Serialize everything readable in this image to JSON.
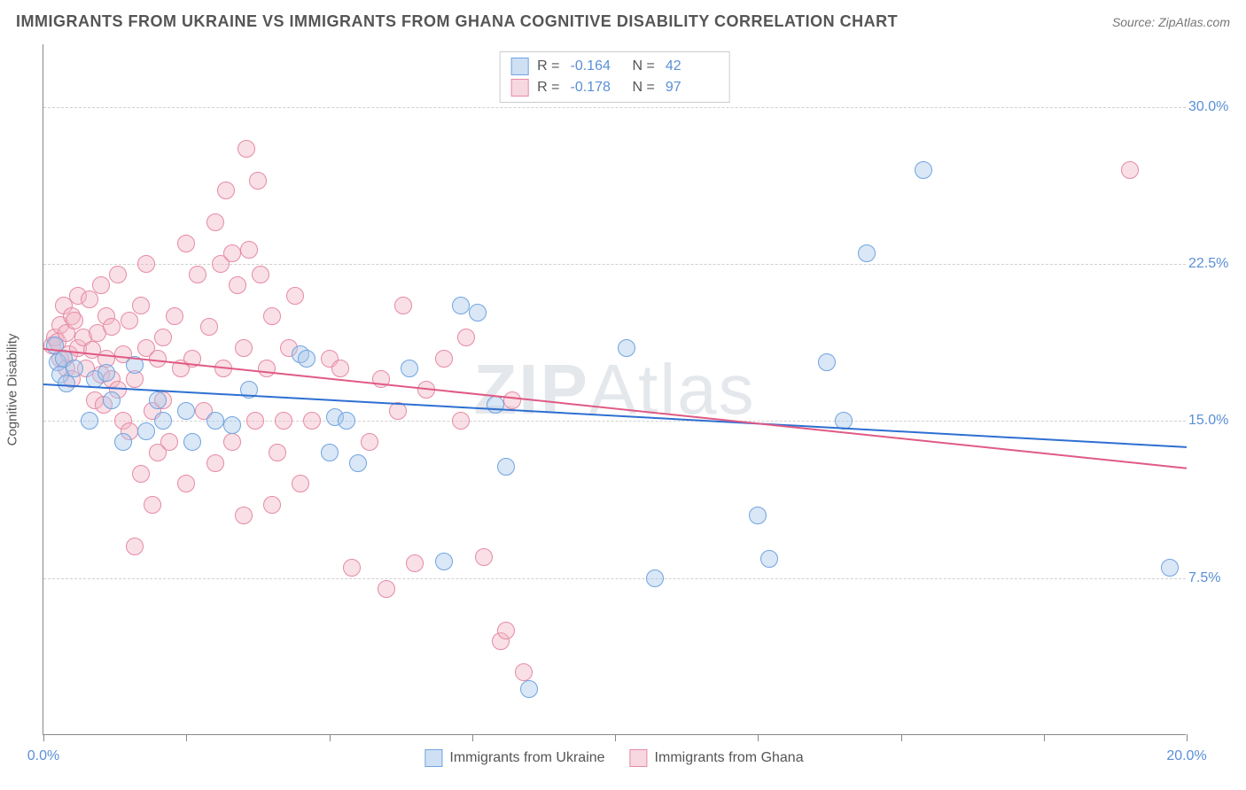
{
  "title": "IMMIGRANTS FROM UKRAINE VS IMMIGRANTS FROM GHANA COGNITIVE DISABILITY CORRELATION CHART",
  "source_prefix": "Source: ",
  "source_name": "ZipAtlas.com",
  "watermark_bold": "ZIP",
  "watermark_light": "Atlas",
  "chart": {
    "type": "scatter",
    "ylabel": "Cognitive Disability",
    "xlim": [
      0,
      20
    ],
    "ylim": [
      0,
      33
    ],
    "xticks": [
      0,
      2.5,
      5,
      7.5,
      10,
      12.5,
      15,
      17.5,
      20
    ],
    "xtick_labels": {
      "0": "0.0%",
      "20": "20.0%"
    },
    "yticks": [
      7.5,
      15.0,
      22.5,
      30.0
    ],
    "ytick_labels": [
      "7.5%",
      "15.0%",
      "22.5%",
      "30.0%"
    ],
    "background_color": "#ffffff",
    "grid_color": "#d0d0d0",
    "axis_color": "#888888",
    "tick_label_color": "#5a8fd6",
    "marker_radius": 10,
    "marker_stroke_width": 1.5,
    "marker_fill_opacity": 0.18,
    "series": [
      {
        "name": "Immigrants from Ukraine",
        "color_stroke": "#6fa4e0",
        "color_fill": "#a9c7ea",
        "swatch_fill": "#cfe0f4",
        "swatch_border": "#6fa4e0",
        "trend_color": "#2e6fd1",
        "R": "-0.164",
        "N": "42",
        "trend": {
          "x1": 0,
          "y1": 16.8,
          "x2": 20,
          "y2": 13.8
        },
        "points": [
          [
            0.2,
            18.6
          ],
          [
            0.25,
            17.8
          ],
          [
            0.3,
            17.2
          ],
          [
            0.35,
            18.0
          ],
          [
            0.4,
            16.8
          ],
          [
            0.55,
            17.5
          ],
          [
            0.8,
            15.0
          ],
          [
            0.9,
            17.0
          ],
          [
            1.1,
            17.3
          ],
          [
            1.2,
            16.0
          ],
          [
            1.4,
            14.0
          ],
          [
            1.6,
            17.7
          ],
          [
            1.8,
            14.5
          ],
          [
            2.0,
            16.0
          ],
          [
            2.1,
            15.0
          ],
          [
            2.5,
            15.5
          ],
          [
            2.6,
            14.0
          ],
          [
            3.0,
            15.0
          ],
          [
            3.3,
            14.8
          ],
          [
            3.6,
            16.5
          ],
          [
            4.5,
            18.2
          ],
          [
            4.6,
            18.0
          ],
          [
            5.0,
            13.5
          ],
          [
            5.1,
            15.2
          ],
          [
            5.3,
            15.0
          ],
          [
            5.5,
            13.0
          ],
          [
            6.4,
            17.5
          ],
          [
            7.0,
            8.3
          ],
          [
            7.3,
            20.5
          ],
          [
            7.6,
            20.2
          ],
          [
            7.9,
            15.8
          ],
          [
            8.1,
            12.8
          ],
          [
            8.5,
            2.2
          ],
          [
            10.2,
            18.5
          ],
          [
            10.7,
            7.5
          ],
          [
            12.5,
            10.5
          ],
          [
            12.7,
            8.4
          ],
          [
            13.7,
            17.8
          ],
          [
            14.0,
            15.0
          ],
          [
            14.4,
            23.0
          ],
          [
            15.4,
            27.0
          ],
          [
            19.7,
            8.0
          ]
        ]
      },
      {
        "name": "Immigrants from Ghana",
        "color_stroke": "#e68aa5",
        "color_fill": "#f0b6c6",
        "swatch_fill": "#f7d7e0",
        "swatch_border": "#e68aa5",
        "trend_color": "#e05a84",
        "R": "-0.178",
        "N": "97",
        "trend": {
          "x1": 0,
          "y1": 18.5,
          "x2": 20,
          "y2": 12.8
        },
        "points": [
          [
            0.15,
            18.6
          ],
          [
            0.2,
            19.0
          ],
          [
            0.25,
            18.8
          ],
          [
            0.3,
            19.6
          ],
          [
            0.3,
            18.0
          ],
          [
            0.35,
            20.5
          ],
          [
            0.4,
            19.2
          ],
          [
            0.4,
            17.5
          ],
          [
            0.45,
            18.2
          ],
          [
            0.5,
            20.0
          ],
          [
            0.5,
            17.0
          ],
          [
            0.55,
            19.8
          ],
          [
            0.6,
            18.5
          ],
          [
            0.6,
            21.0
          ],
          [
            0.7,
            19.0
          ],
          [
            0.75,
            17.5
          ],
          [
            0.8,
            20.8
          ],
          [
            0.85,
            18.4
          ],
          [
            0.9,
            16.0
          ],
          [
            0.95,
            19.2
          ],
          [
            1.0,
            17.2
          ],
          [
            1.0,
            21.5
          ],
          [
            1.05,
            15.8
          ],
          [
            1.1,
            18.0
          ],
          [
            1.1,
            20.0
          ],
          [
            1.2,
            17.0
          ],
          [
            1.2,
            19.5
          ],
          [
            1.3,
            16.5
          ],
          [
            1.3,
            22.0
          ],
          [
            1.4,
            18.2
          ],
          [
            1.4,
            15.0
          ],
          [
            1.5,
            19.8
          ],
          [
            1.5,
            14.5
          ],
          [
            1.6,
            9.0
          ],
          [
            1.6,
            17.0
          ],
          [
            1.7,
            20.5
          ],
          [
            1.7,
            12.5
          ],
          [
            1.8,
            18.5
          ],
          [
            1.8,
            22.5
          ],
          [
            1.9,
            15.5
          ],
          [
            1.9,
            11.0
          ],
          [
            2.0,
            18.0
          ],
          [
            2.0,
            13.5
          ],
          [
            2.1,
            19.0
          ],
          [
            2.1,
            16.0
          ],
          [
            2.2,
            14.0
          ],
          [
            2.3,
            20.0
          ],
          [
            2.4,
            17.5
          ],
          [
            2.5,
            23.5
          ],
          [
            2.5,
            12.0
          ],
          [
            2.6,
            18.0
          ],
          [
            2.7,
            22.0
          ],
          [
            2.8,
            15.5
          ],
          [
            2.9,
            19.5
          ],
          [
            3.0,
            13.0
          ],
          [
            3.0,
            24.5
          ],
          [
            3.1,
            22.5
          ],
          [
            3.15,
            17.5
          ],
          [
            3.2,
            26.0
          ],
          [
            3.3,
            23.0
          ],
          [
            3.3,
            14.0
          ],
          [
            3.4,
            21.5
          ],
          [
            3.5,
            18.5
          ],
          [
            3.5,
            10.5
          ],
          [
            3.55,
            28.0
          ],
          [
            3.6,
            23.2
          ],
          [
            3.7,
            15.0
          ],
          [
            3.75,
            26.5
          ],
          [
            3.8,
            22.0
          ],
          [
            3.9,
            17.5
          ],
          [
            4.0,
            20.0
          ],
          [
            4.0,
            11.0
          ],
          [
            4.1,
            13.5
          ],
          [
            4.2,
            15.0
          ],
          [
            4.3,
            18.5
          ],
          [
            4.4,
            21.0
          ],
          [
            4.5,
            12.0
          ],
          [
            4.7,
            15.0
          ],
          [
            5.0,
            18.0
          ],
          [
            5.2,
            17.5
          ],
          [
            5.4,
            8.0
          ],
          [
            5.7,
            14.0
          ],
          [
            5.9,
            17.0
          ],
          [
            6.0,
            7.0
          ],
          [
            6.2,
            15.5
          ],
          [
            6.3,
            20.5
          ],
          [
            6.5,
            8.2
          ],
          [
            6.7,
            16.5
          ],
          [
            7.0,
            18.0
          ],
          [
            7.3,
            15.0
          ],
          [
            7.4,
            19.0
          ],
          [
            7.7,
            8.5
          ],
          [
            8.0,
            4.5
          ],
          [
            8.1,
            5.0
          ],
          [
            8.2,
            16.0
          ],
          [
            8.4,
            3.0
          ],
          [
            19.0,
            27.0
          ]
        ]
      }
    ]
  }
}
